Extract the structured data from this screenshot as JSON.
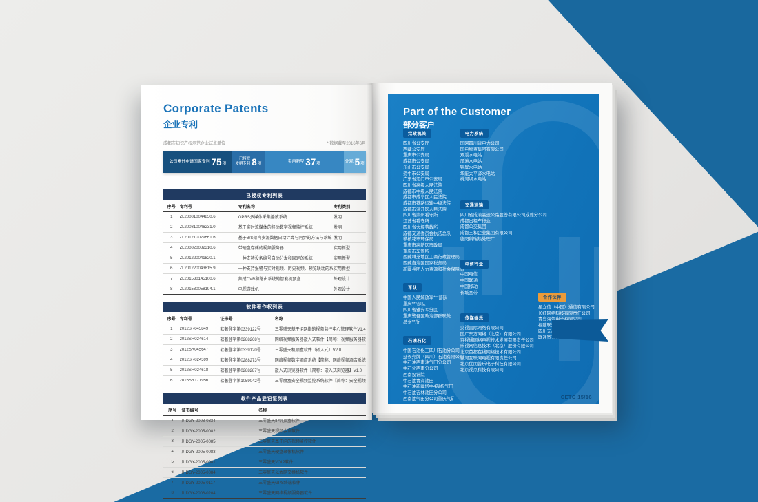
{
  "left_page": {
    "title": "Corporate Patents",
    "subtitle": "企业专利",
    "note_left": "成都市知识产权示范企业试点单位",
    "note_right": "* 数据截至2016年6月",
    "stats": [
      {
        "label": "公司累计申请国家专利",
        "value": "75",
        "unit": "项",
        "color": "#17507e"
      },
      {
        "label": "已授权",
        "label2": "发明专利",
        "value": "8",
        "unit": "项",
        "color": "#2a6ea8"
      },
      {
        "label": "实用新型",
        "value": "37",
        "unit": "项",
        "color": "#3787c2"
      },
      {
        "label": "外观",
        "value": "5",
        "unit": "项",
        "color": "#66abd7"
      }
    ],
    "tables": [
      {
        "title": "已授权专利列表",
        "columns": [
          "序号",
          "专利号",
          "专利名称",
          "专利类别"
        ],
        "rows": [
          [
            "1",
            "ZL200810044850.6",
            "GPRS多媒体采集播放系统",
            "发明"
          ],
          [
            "2",
            "ZL200810046231.0",
            "基于实时流媒体的移动数字视频监控系统",
            "发明"
          ],
          [
            "3",
            "ZL201210029661.6",
            "基于B/S架构多源数据自动计算与同步的方法与系统",
            "发明"
          ],
          [
            "4",
            "ZL200820082310.6",
            "带硬盘存储的视频服务器",
            "实用新型"
          ],
          [
            "5",
            "ZL201220041820.1",
            "一种支持设备编号自动分发和固定的系统",
            "实用新型"
          ],
          [
            "6",
            "ZL201220043815.9",
            "一种支持报警与实时视频、历史视频、预览联动的系统",
            "实用新型"
          ],
          [
            "7",
            "ZL201530145100.6",
            "集成DVR和路由系统的智能机顶盒",
            "外观设计"
          ],
          [
            "8",
            "ZL201530058194.1",
            "电视游戏机",
            "外观设计"
          ]
        ]
      },
      {
        "title": "软件著作权列表",
        "columns": [
          "序号",
          "专利号",
          "证书号",
          "名称"
        ],
        "rows": [
          [
            "1",
            "2012SR045849",
            "软著登字第0339122号",
            "三零盛天基于IP网络的视频监控中心管理软件V1.4"
          ],
          [
            "2",
            "2012SR024614",
            "软著登字第0288268号",
            "网络视频服务器嵌入式软件【简称：视频服务器软件】V1.0"
          ],
          [
            "3",
            "2012SR045647",
            "软著登字第0339120号",
            "三零盛天机顶盒软件（嵌入式）V2.0"
          ],
          [
            "4",
            "2012SR024599",
            "软著登字第0288273号",
            "网络视频数字酒店系统【简称：网络视频酒店系统】V1.0"
          ],
          [
            "5",
            "2012SR024618",
            "软著登字第0288287号",
            "嵌入式浏览器软件【简称：嵌入式浏览器】V1.0"
          ],
          [
            "6",
            "2015SR171956",
            "软著登字第1059042号",
            "三零魔盒安全视频监控系统软件【简称：安全视频监控软件】V2.0"
          ]
        ]
      },
      {
        "title": "软件产品登记证列表",
        "columns": [
          "序号",
          "证书编号",
          "名称"
        ],
        "rows": [
          [
            "1",
            "川DGY-2008-0334",
            "三零盛天IP机顶盒软件"
          ],
          [
            "2",
            "川DGY-2005-0082",
            "三零盛天视频会议软件"
          ],
          [
            "3",
            "川DGY-2005-0085",
            "三零盛天基于IP的视频监控软件"
          ],
          [
            "4",
            "川DGY-2005-0083",
            "三零盛天硬盘录像机软件"
          ],
          [
            "5",
            "川DGY-2005-0081",
            "三零盛天VOIP软件"
          ],
          [
            "6",
            "川DGY-2005-0084",
            "三零盛天以太网交换机软件"
          ],
          [
            "7",
            "川DGY-2005-0117",
            "三零盛天GPS终端软件"
          ],
          [
            "8",
            "川DGY-2006-0204",
            "三零盛天网络视频服务器软件"
          ]
        ]
      }
    ]
  },
  "right_page": {
    "title": "Part of the Customer",
    "subtitle": "部分客户",
    "page_number": "CETC 15/16",
    "badge_bg": "#0a5c9e",
    "badge_fg": "#ffffff",
    "columns": [
      {
        "sections": [
          {
            "badge": "党政机关",
            "items": [
              "四川省公安厅",
              "西藏公安厅",
              "重庆市公安局",
              "成都市公安局",
              "乐山市公安局",
              "资中市公安局",
              "广东省江门市公安局",
              "四川省高级人民法院",
              "成都市中级人民法院",
              "成都市成华区人民法院",
              "成都市铁路运输中级法院",
              "成都市温江区人民法院",
              "四川省崇州看守所",
              "江苏省看守所",
              "四川省大堰劳教所",
              "成都交通委员会执法总队",
              "攀枝花市环保局",
              "重庆市高新区市政局",
              "重庆市车管所",
              "西藏林芝地区工商行政管理局",
              "西藏自治区国家税务局",
              "新疆兵团人力资源和社会保障局"
            ]
          },
          {
            "badge": "军队",
            "items": [
              "中国人民解放军***部队",
              "重庆***部队",
              "四川省雅安军分区",
              "重庆警备区政治部群联处",
              "总参**所"
            ]
          },
          {
            "badge": "石油石化",
            "items": [
              "中国石油化工四川石油分公司",
              "延长壳牌（四川）石油有限公司",
              "中石油西南油气田分公司",
              "中石化西南分公司",
              "西南设计院",
              "中石油青海油田",
              "中石油新疆塔中4凝析气田",
              "中石油吉林油田分公司",
              "西南油气田分公司重庆气矿"
            ]
          }
        ]
      },
      {
        "sections": [
          {
            "badge": "电力系统",
            "items": [
              "国网四川省电力公司",
              "国电物资集团有限公司",
              "双溪水电站",
              "凤滩水电站",
              "锦屏水电站",
              "华能太平驿水电站",
              "桃河坝水电站"
            ]
          },
          {
            "badge": "交通运输",
            "items": [
              "四川省成渝高速公路股份有限公司成雅分公司",
              "成都出租车行业",
              "成都公交集团",
              "成都三和企业集团有限公司",
              "德阳科瑞热处理厂"
            ]
          },
          {
            "badge": "电信行业",
            "items": [
              "中国电信",
              "中国联通",
              "中国移动",
              "长城宽带"
            ]
          },
          {
            "badge": "传媒娱乐",
            "items": [
              "央视国际网络有限公司",
              "国广东方网络（北京）有限公司",
              "百视通网络电视技术发展有限责任公司",
              "乐视网信息技术（北京）股份有限公司",
              "北京首都在线网络技术有限公司",
              "银河互联网电视有限责任公司",
              "北京优朋普乐电子科技有限公司",
              "北京视点科技有限公司"
            ]
          }
        ]
      },
      {
        "sections": [
          {
            "badge": "合作伙伴",
            "badge_bg": "#eb9b3a",
            "badge_fg": "#1d4a74",
            "items": [
              "星立信（中国）通信有限公司",
              "长虹网络科技有限责任公司",
              "青岛海尔电子有限公司",
              "福建联迪电子股份有限公司",
              "四川天邑康和通信股份有限公司",
              "联通宽带在线有限公司"
            ]
          }
        ]
      }
    ]
  }
}
